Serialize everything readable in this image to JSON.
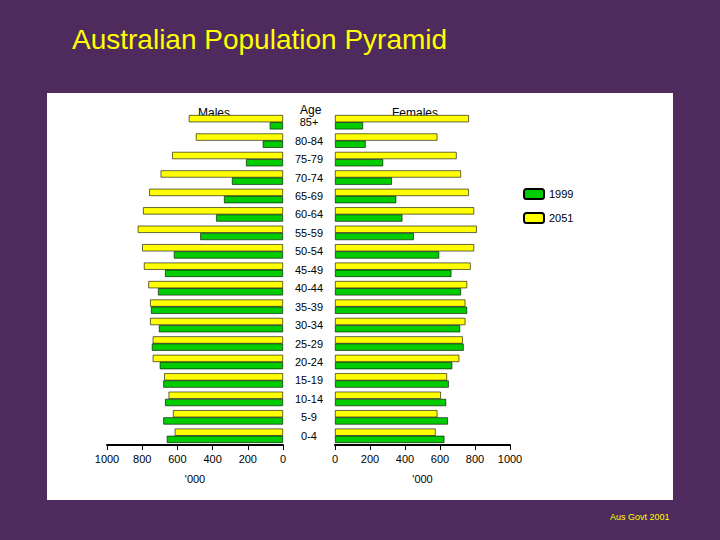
{
  "chart_data": {
    "type": "bar",
    "title": "Australian Population Pyramid",
    "source": "Aus Govt 2001",
    "orientation": "horizontal",
    "y_label": "Age",
    "legend": "right",
    "grid": false,
    "categories": [
      "0-4",
      "5-9",
      "10-14",
      "15-19",
      "20-24",
      "25-29",
      "30-34",
      "35-39",
      "40-44",
      "45-49",
      "50-54",
      "55-59",
      "60-64",
      "65-69",
      "70-74",
      "75-79",
      "80-84",
      "85+"
    ],
    "panels": [
      {
        "title": "Males",
        "x_label": "'000",
        "xlim": [
          1000,
          0
        ],
        "xticks": [
          1000,
          800,
          600,
          400,
          200,
          0
        ],
        "series": [
          {
            "name": "2051",
            "color": "#ffff00",
            "values": [
              615,
              625,
              650,
              675,
              740,
              740,
              755,
              755,
              765,
              790,
              800,
              825,
              795,
              760,
              695,
              630,
              495,
              535
            ]
          },
          {
            "name": "1999",
            "color": "#00cc00",
            "values": [
              660,
              680,
              670,
              680,
              700,
              745,
              705,
              750,
              710,
              670,
              620,
              470,
              380,
              335,
              290,
              210,
              115,
              75
            ]
          }
        ]
      },
      {
        "title": "Females",
        "x_label": "'000",
        "xlim": [
          0,
          1000
        ],
        "xticks": [
          0,
          200,
          400,
          600,
          800,
          1000
        ],
        "series": [
          {
            "name": "2051",
            "color": "#ffff00",
            "values": [
              575,
              585,
              605,
              640,
              710,
              730,
              745,
              745,
              755,
              775,
              795,
              810,
              795,
              765,
              720,
              695,
              585,
              765
            ]
          },
          {
            "name": "1999",
            "color": "#00cc00",
            "values": [
              625,
              645,
              635,
              650,
              670,
              735,
              715,
              755,
              720,
              665,
              595,
              450,
              385,
              350,
              325,
              275,
              175,
              160
            ]
          }
        ]
      }
    ]
  }
}
